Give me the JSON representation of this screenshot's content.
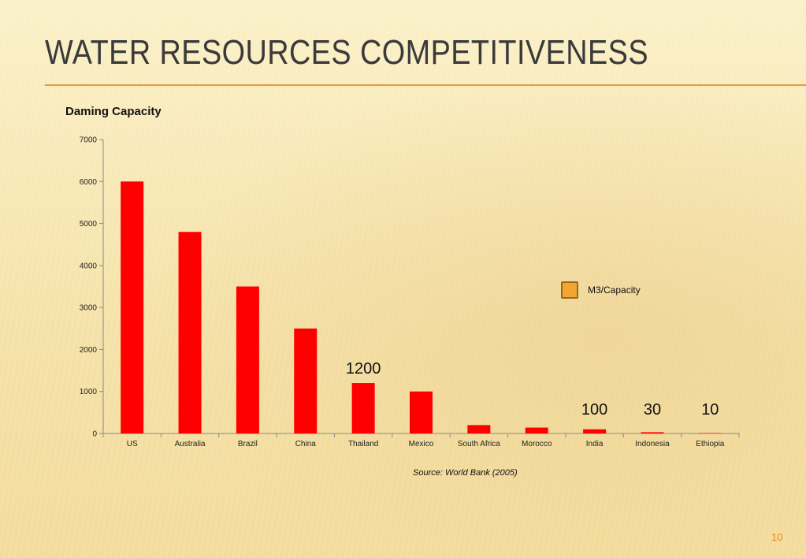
{
  "slide": {
    "title": "Water Resources Competitiveness",
    "source": "Source: World Bank (2005)",
    "page_number": "10"
  },
  "colors": {
    "bar": "#ff0000",
    "accent": "#e59a3b",
    "legend": "#f2a533"
  },
  "chart_data": {
    "type": "bar",
    "title": "Daming Capacity",
    "xlabel": "",
    "ylabel": "",
    "categories": [
      "US",
      "Australia",
      "Brazil",
      "China",
      "Thailand",
      "Mexico",
      "South Africa",
      "Morocco",
      "India",
      "Indonesia",
      "Ethiopia"
    ],
    "series": [
      {
        "name": "M3/Capacity",
        "values": [
          6000,
          4800,
          3500,
          2500,
          1200,
          1000,
          200,
          140,
          100,
          30,
          10
        ]
      }
    ],
    "data_labels": [
      {
        "category": "Thailand",
        "text": "1200"
      },
      {
        "category": "India",
        "text": "100"
      },
      {
        "category": "Indonesia",
        "text": "30"
      },
      {
        "category": "Ethiopia",
        "text": "10"
      }
    ],
    "ylim": [
      0,
      7000
    ],
    "yticks": [
      0,
      1000,
      2000,
      3000,
      4000,
      5000,
      6000,
      7000
    ],
    "grid": false,
    "legend_position": "right"
  }
}
